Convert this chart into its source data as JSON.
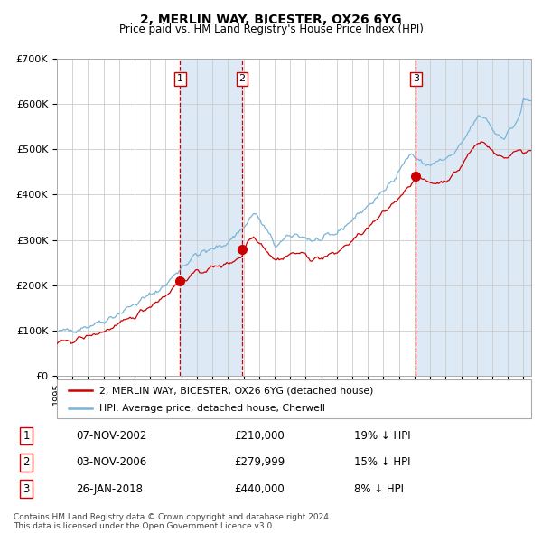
{
  "title": "2, MERLIN WAY, BICESTER, OX26 6YG",
  "subtitle": "Price paid vs. HM Land Registry's House Price Index (HPI)",
  "sale_prices": [
    210000,
    279999,
    440000
  ],
  "sale_labels": [
    "1",
    "2",
    "3"
  ],
  "sale_info": [
    "07-NOV-2002",
    "£210,000",
    "19% ↓ HPI",
    "03-NOV-2006",
    "£279,999",
    "15% ↓ HPI",
    "26-JAN-2018",
    "£440,000",
    "8% ↓ HPI"
  ],
  "hpi_color": "#7ab4d8",
  "price_color": "#cc0000",
  "dot_color": "#cc0000",
  "vline_color": "#cc0000",
  "shade_color": "#ddeaf5",
  "grid_color": "#cccccc",
  "bg_color": "#ffffff",
  "legend_label_price": "2, MERLIN WAY, BICESTER, OX26 6YG (detached house)",
  "legend_label_hpi": "HPI: Average price, detached house, Cherwell",
  "footer": "Contains HM Land Registry data © Crown copyright and database right 2024.\nThis data is licensed under the Open Government Licence v3.0.",
  "ylim": [
    0,
    700000
  ],
  "yticks": [
    0,
    100000,
    200000,
    300000,
    400000,
    500000,
    600000,
    700000
  ],
  "ytick_labels": [
    "£0",
    "£100K",
    "£200K",
    "£300K",
    "£400K",
    "£500K",
    "£600K",
    "£700K"
  ],
  "xstart": 1995.0,
  "xend": 2025.5
}
